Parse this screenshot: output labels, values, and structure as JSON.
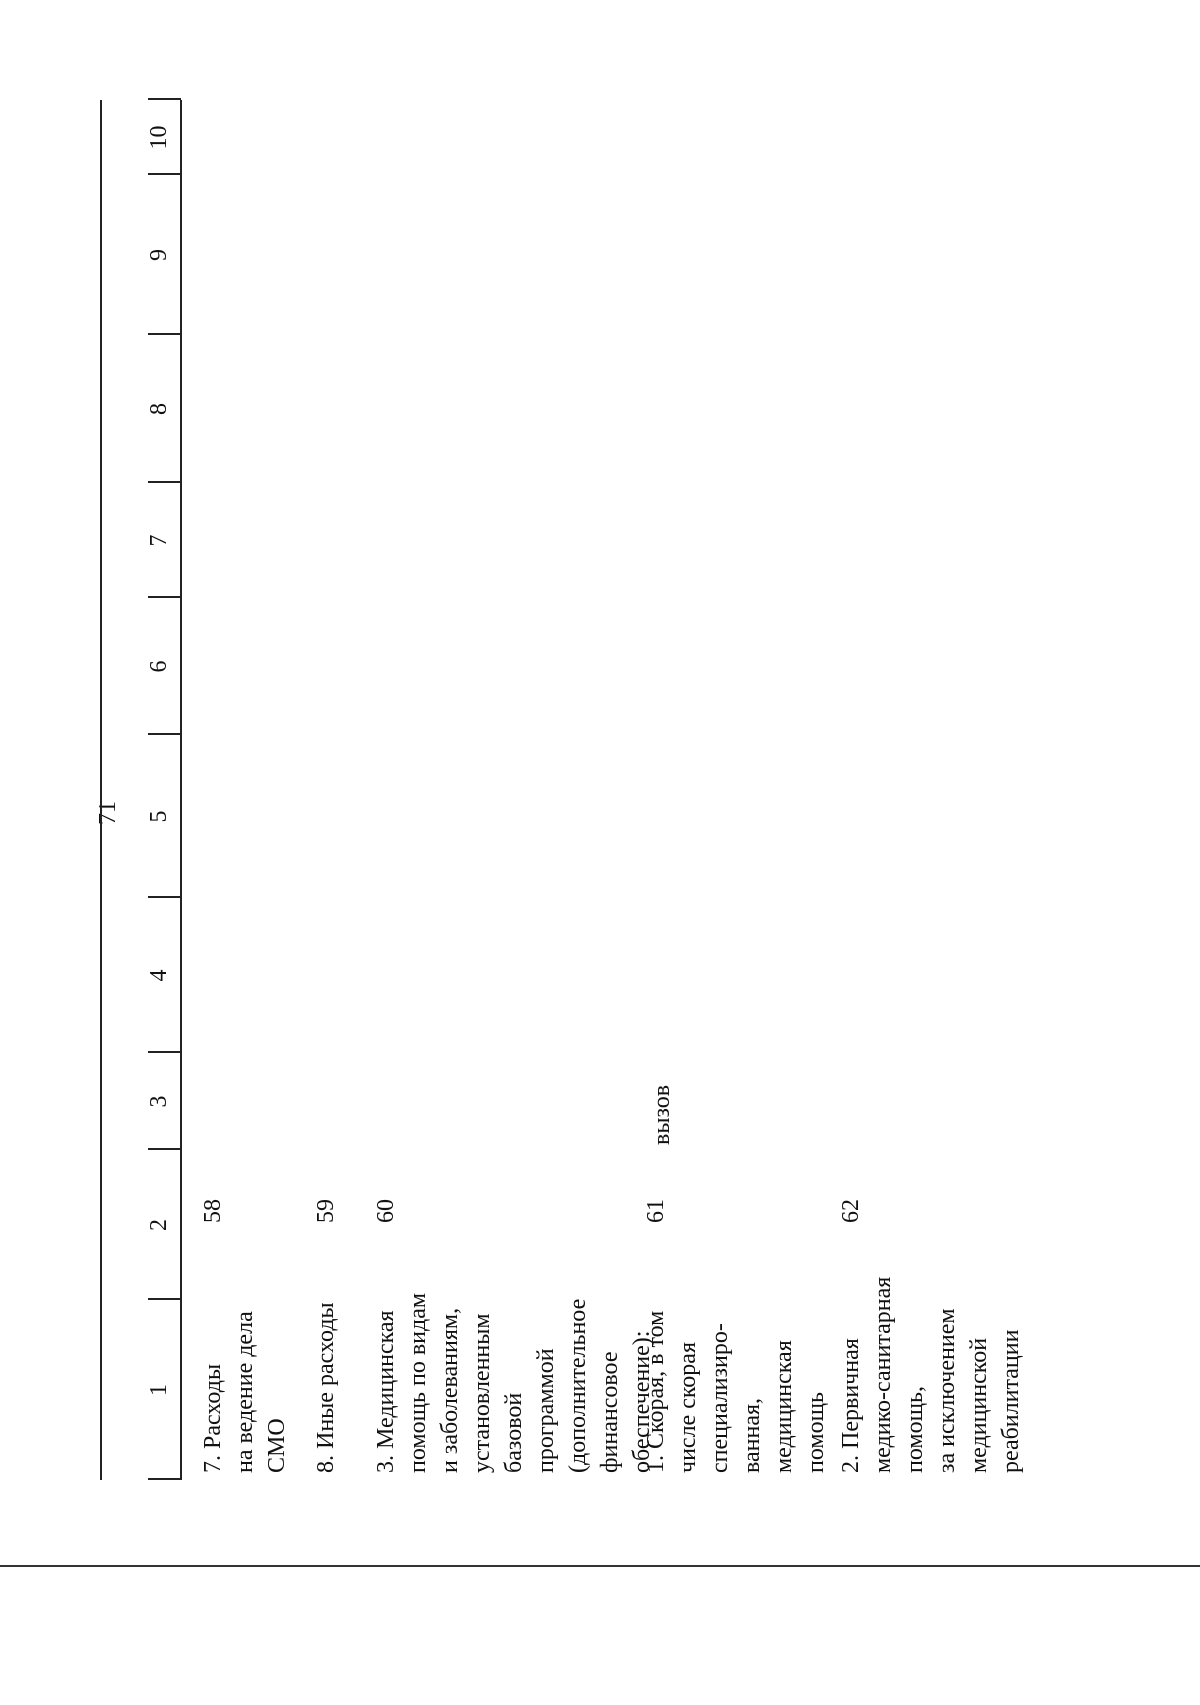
{
  "page_number": "71",
  "table": {
    "header": [
      "1",
      "2",
      "3",
      "4",
      "5",
      "6",
      "7",
      "8",
      "9",
      "10"
    ],
    "rows": [
      {
        "label": [
          "7. Расходы",
          "на ведение дела",
          "СМО"
        ],
        "code": "58"
      },
      {
        "label": [
          "8. Иные расходы"
        ],
        "code": "59"
      },
      {
        "label": [
          "3. Медицинская",
          "помощь по видам",
          "и заболеваниям,",
          "установленным",
          "базовой",
          "программой",
          "(дополнительное",
          "финансовое",
          "обеспечение):"
        ],
        "code": "60"
      },
      {
        "label": [
          "1. Скорая, в том",
          "числе скорая",
          "специализиро-",
          "ванная,",
          "медицинская",
          "помощь"
        ],
        "code": "61",
        "unit": "вызов"
      },
      {
        "label": [
          "2. Первичная",
          "медико-санитарная",
          "помощь,",
          "за исключением",
          "медицинской",
          "реабилитации"
        ],
        "code": "62"
      }
    ]
  }
}
